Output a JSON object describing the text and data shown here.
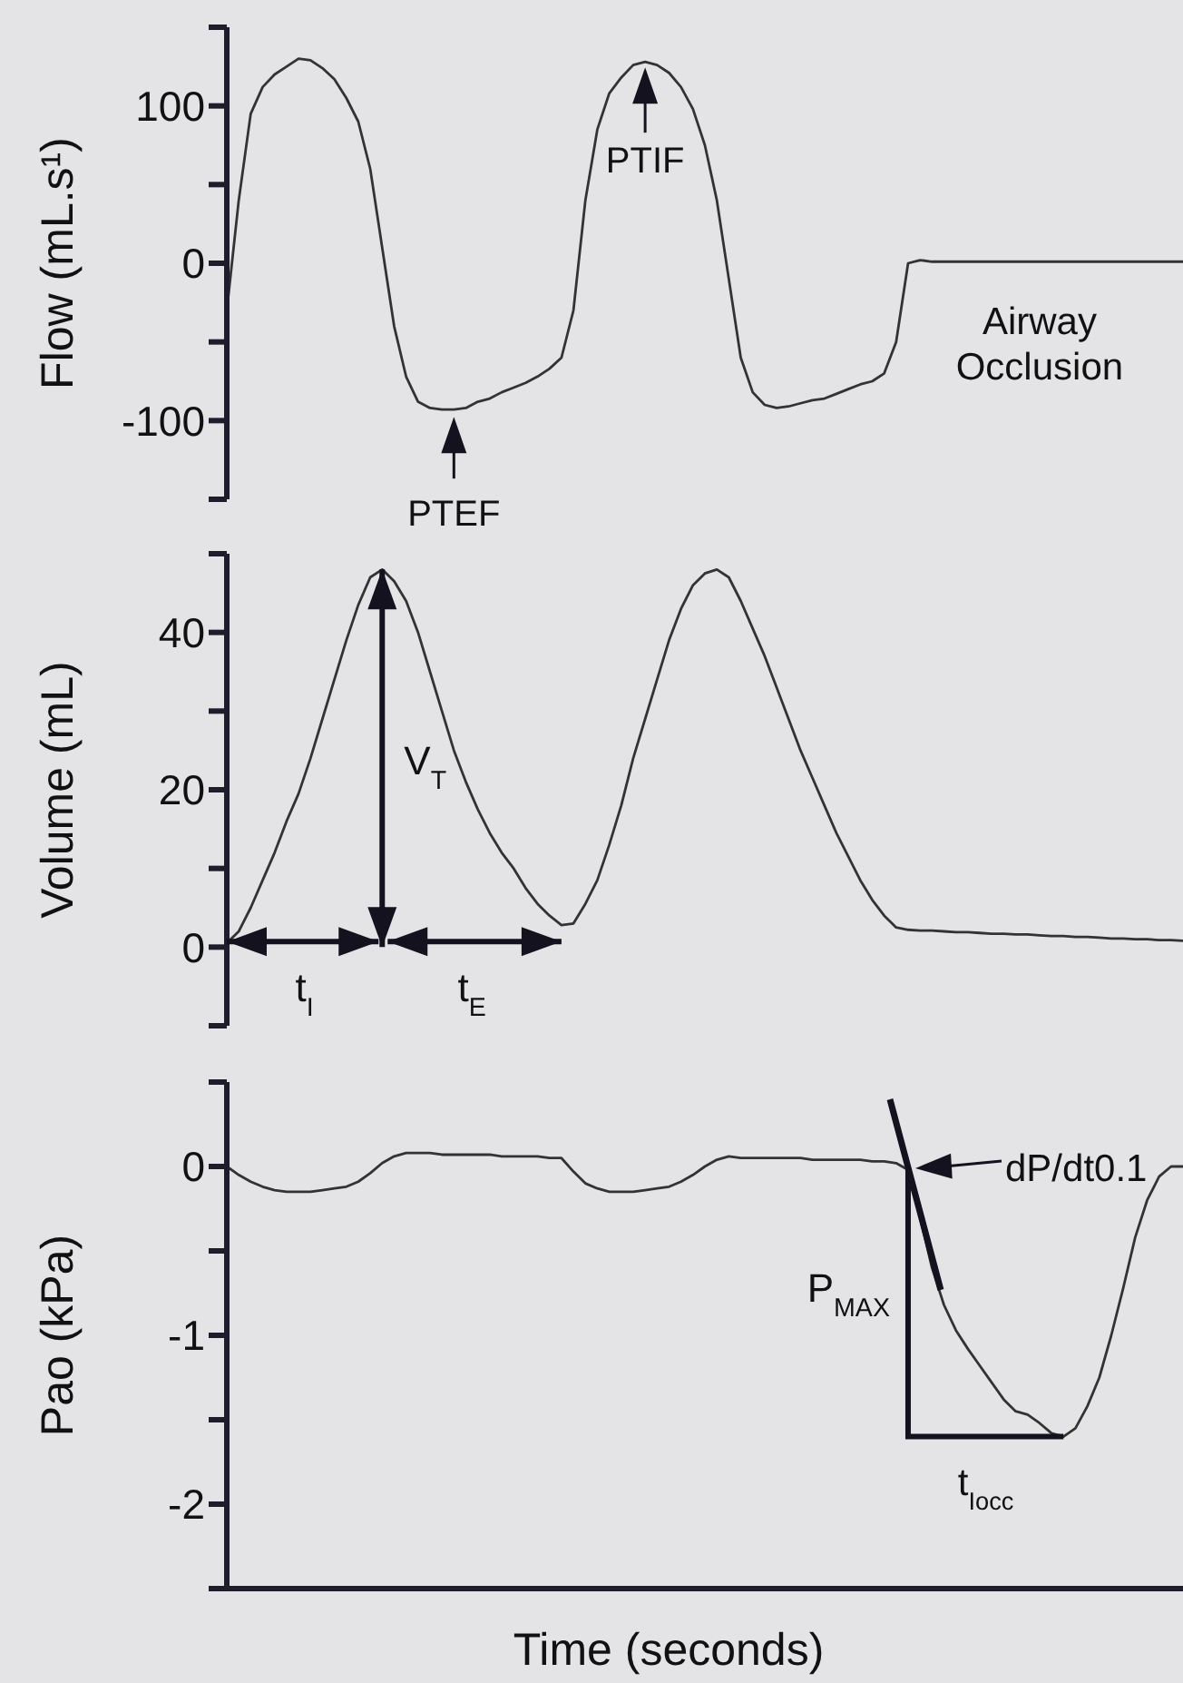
{
  "chart_data": [
    {
      "type": "line",
      "ylabel": "Flow (mL.s¹)",
      "categories": [
        null,
        null,
        null,
        null,
        null,
        null,
        null,
        null,
        null,
        null,
        null,
        null,
        null,
        null,
        null,
        null,
        null,
        null,
        null,
        null,
        null,
        null,
        null,
        null,
        null,
        null,
        null,
        null,
        null,
        null,
        null,
        null,
        null,
        null,
        null,
        null,
        null,
        null,
        null,
        null,
        null,
        null,
        null,
        null,
        null,
        null,
        null,
        null,
        null,
        null,
        null,
        null,
        null,
        null,
        null,
        null,
        null,
        null,
        null,
        null,
        null,
        null,
        null,
        null,
        null,
        null,
        null,
        null,
        null,
        null,
        null,
        null,
        null,
        null,
        null,
        null,
        null,
        null,
        null,
        null,
        null
      ],
      "series": [
        {
          "color": "#333333",
          "values": [
            -30,
            40,
            95,
            112,
            120,
            125,
            130,
            129,
            124,
            117,
            105,
            90,
            60,
            10,
            -40,
            -72,
            -88,
            -92,
            -93,
            -93,
            -92,
            -88,
            -86,
            -82,
            -79,
            -76,
            -72,
            -67,
            -60,
            -30,
            40,
            85,
            108,
            118,
            126,
            128,
            126,
            121,
            112,
            98,
            75,
            40,
            -10,
            -60,
            -82,
            -90,
            -92,
            -91,
            -89,
            -87,
            -86,
            -83,
            -80,
            -77,
            -75,
            -70,
            -50,
            0,
            2,
            1,
            1,
            1,
            1,
            1,
            1,
            1,
            1,
            1,
            1,
            1,
            1,
            1,
            1,
            1,
            1,
            1,
            1,
            1,
            1,
            1,
            1
          ]
        }
      ],
      "ylim": [
        -150,
        150
      ],
      "yticks": [
        {
          "value": -150,
          "label": null
        },
        -100,
        {
          "value": -50,
          "label": null
        },
        0,
        {
          "value": 50,
          "label": null
        },
        100,
        {
          "value": 150,
          "label": null
        }
      ],
      "tick_labels": "y",
      "annotations": [
        "PTIF",
        "PTEF",
        "Airway Occlusion"
      ]
    },
    {
      "type": "line",
      "ylabel": "Volume (mL)",
      "categories": [
        null,
        null,
        null,
        null,
        null,
        null,
        null,
        null,
        null,
        null,
        null,
        null,
        null,
        null,
        null,
        null,
        null,
        null,
        null,
        null,
        null,
        null,
        null,
        null,
        null,
        null,
        null,
        null,
        null,
        null,
        null,
        null,
        null,
        null,
        null,
        null,
        null,
        null,
        null,
        null,
        null,
        null,
        null,
        null,
        null,
        null,
        null,
        null,
        null,
        null,
        null,
        null,
        null,
        null,
        null,
        null,
        null,
        null,
        null,
        null,
        null,
        null,
        null,
        null,
        null,
        null,
        null,
        null,
        null,
        null,
        null,
        null,
        null,
        null,
        null,
        null,
        null,
        null,
        null,
        null,
        null
      ],
      "series": [
        {
          "color": "#333333",
          "values": [
            0.5,
            2,
            5,
            8.5,
            12,
            16,
            19.5,
            24,
            29,
            34,
            39,
            43.5,
            47,
            48,
            46.5,
            44,
            40,
            35,
            30,
            25,
            21,
            17.5,
            14.5,
            12,
            10,
            7.5,
            5.5,
            4,
            2.8,
            3,
            5.5,
            8.5,
            13,
            18,
            24,
            29,
            34,
            39,
            43,
            46,
            47.5,
            48,
            47,
            44,
            40.5,
            37,
            33,
            29,
            25,
            21.5,
            18,
            14.5,
            11.5,
            8.5,
            6,
            4,
            2.5,
            2.2,
            2.1,
            2.1,
            2.0,
            1.9,
            1.9,
            1.8,
            1.7,
            1.7,
            1.6,
            1.6,
            1.5,
            1.4,
            1.4,
            1.3,
            1.3,
            1.2,
            1.1,
            1.1,
            1.0,
            1.0,
            0.9,
            0.9,
            0.8
          ]
        }
      ],
      "ylim": [
        -10,
        50
      ],
      "yticks": [
        {
          "value": -10,
          "label": null
        },
        0,
        {
          "value": 10,
          "label": null
        },
        20,
        {
          "value": 30,
          "label": null
        },
        40,
        {
          "value": 50,
          "label": null
        }
      ],
      "tick_labels": "y",
      "annotations": [
        "V$_{T}$",
        "t$_{I}$",
        "t$_{E}$"
      ]
    },
    {
      "type": "line",
      "ylabel": "Pao (kPa)",
      "xlabel": "Time (seconds)",
      "categories": [
        null,
        null,
        null,
        null,
        null,
        null,
        null,
        null,
        null,
        null,
        null,
        null,
        null,
        null,
        null,
        null,
        null,
        null,
        null,
        null,
        null,
        null,
        null,
        null,
        null,
        null,
        null,
        null,
        null,
        null,
        null,
        null,
        null,
        null,
        null,
        null,
        null,
        null,
        null,
        null,
        null,
        null,
        null,
        null,
        null,
        null,
        null,
        null,
        null,
        null,
        null,
        null,
        null,
        null,
        null,
        null,
        null,
        null,
        null,
        null,
        null,
        null,
        null,
        null,
        null,
        null,
        null,
        null,
        null,
        null,
        null,
        null,
        null,
        null,
        null,
        null,
        null,
        null,
        null,
        null,
        null
      ],
      "series": [
        {
          "color": "#333333",
          "values": [
            0,
            -0.05,
            -0.09,
            -0.12,
            -0.14,
            -0.15,
            -0.15,
            -0.15,
            -0.14,
            -0.13,
            -0.12,
            -0.09,
            -0.04,
            0.02,
            0.06,
            0.08,
            0.08,
            0.08,
            0.07,
            0.07,
            0.07,
            0.07,
            0.07,
            0.06,
            0.06,
            0.06,
            0.06,
            0.05,
            0.05,
            -0.03,
            -0.1,
            -0.13,
            -0.15,
            -0.15,
            -0.15,
            -0.14,
            -0.13,
            -0.12,
            -0.09,
            -0.05,
            0,
            0.04,
            0.06,
            0.05,
            0.05,
            0.05,
            0.05,
            0.05,
            0.05,
            0.04,
            0.04,
            0.04,
            0.04,
            0.04,
            0.03,
            0.03,
            0.02,
            -0.02,
            -0.3,
            -0.6,
            -0.82,
            -0.97,
            -1.08,
            -1.18,
            -1.28,
            -1.38,
            -1.45,
            -1.47,
            -1.52,
            -1.58,
            -1.6,
            -1.55,
            -1.42,
            -1.25,
            -1.0,
            -0.72,
            -0.42,
            -0.2,
            -0.06,
            0,
            0
          ]
        }
      ],
      "ylim": [
        -2.5,
        0.5
      ],
      "yticks": [
        {
          "value": -2.5,
          "label": null
        },
        -2,
        {
          "value": -1.5,
          "label": null
        },
        -1,
        {
          "value": -0.5,
          "label": null
        },
        0,
        {
          "value": 0.5,
          "label": null
        }
      ],
      "tick_labels": "y",
      "annotations": [
        "dP/dt0.1",
        "P$_{MAX}$",
        "t$_{Iocc}$"
      ]
    }
  ]
}
